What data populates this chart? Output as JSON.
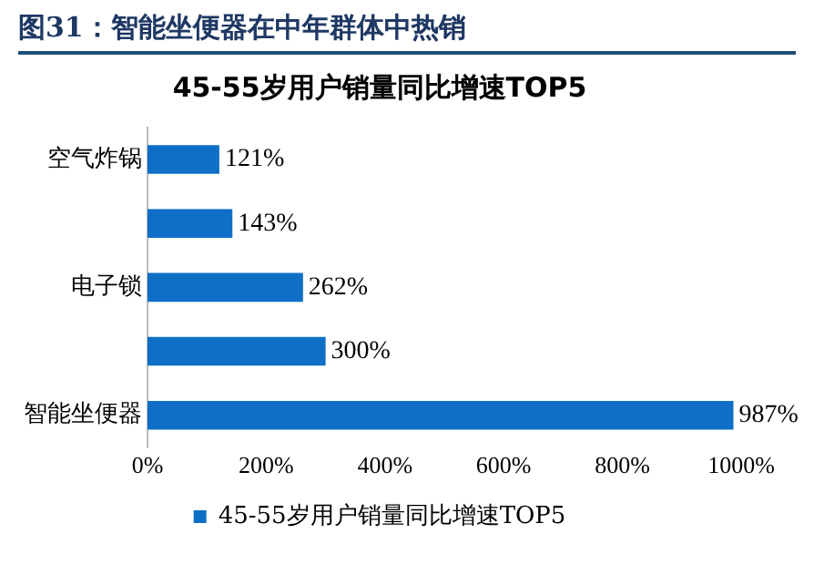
{
  "chart_data": {
    "type": "bar",
    "orientation": "horizontal",
    "title": "图31：智能坐便器在中年群体中热销",
    "subtitle": "45-55岁用户销量同比增速TOP5",
    "categories": [
      "空气炸锅",
      null,
      "电子锁",
      null,
      "智能坐便器"
    ],
    "series": [
      {
        "name": "45-55岁用户销量同比增速TOP5",
        "color": "#0f6fc6",
        "values": [
          121,
          143,
          262,
          300,
          987
        ],
        "value_labels": [
          "121%",
          "143%",
          "262%",
          "300%",
          "987%"
        ]
      }
    ],
    "xlim": [
      0,
      1000
    ],
    "xticks": [
      {
        "value": 0,
        "label": "0%"
      },
      {
        "value": 200,
        "label": "200%"
      },
      {
        "value": 400,
        "label": "400%"
      },
      {
        "value": 600,
        "label": "600%"
      },
      {
        "value": 800,
        "label": "800%"
      },
      {
        "value": 1000,
        "label": "1000%"
      }
    ],
    "grid": false,
    "legend": "bottom"
  }
}
